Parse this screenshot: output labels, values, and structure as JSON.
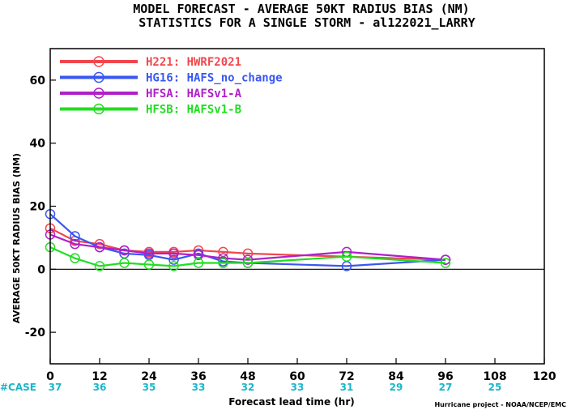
{
  "chart_data": {
    "type": "line",
    "title": "MODEL FORECAST - AVERAGE 50KT RADIUS BIAS (NM)",
    "subtitle": "STATISTICS FOR A SINGLE STORM - al122021_LARRY",
    "xlabel": "Forecast lead time (hr)",
    "ylabel": "AVERAGE 50KT RADIUS BIAS (NM)",
    "xlim": [
      0,
      120
    ],
    "ylim": [
      -30,
      70
    ],
    "xticks": [
      0,
      12,
      24,
      36,
      48,
      60,
      72,
      84,
      96,
      108,
      120
    ],
    "yticks": [
      -20,
      0,
      20,
      40,
      60
    ],
    "zero_line": true,
    "legend_position": "top-left",
    "series": [
      {
        "name": "H221: HWRF2021",
        "color": "#f0474d",
        "x": [
          0,
          6,
          12,
          18,
          24,
          30,
          36,
          42,
          48,
          96
        ],
        "y": [
          13,
          9,
          8,
          6,
          5.5,
          5.5,
          6,
          5.5,
          5,
          3
        ]
      },
      {
        "name": "HG16: HAFS_no_change",
        "color": "#3a57f0",
        "x": [
          0,
          6,
          12,
          18,
          24,
          30,
          36,
          42,
          48,
          72,
          96
        ],
        "y": [
          17.5,
          10.5,
          7,
          5,
          4.5,
          3,
          5,
          2.5,
          2,
          1,
          3
        ]
      },
      {
        "name": "HFSA: HAFSv1-A",
        "color": "#b020c8",
        "x": [
          0,
          6,
          12,
          18,
          24,
          30,
          36,
          42,
          48,
          72,
          96
        ],
        "y": [
          11,
          8,
          7,
          6,
          5,
          5,
          4.5,
          3.5,
          3,
          5.5,
          3
        ]
      },
      {
        "name": "HFSB: HAFSv1-B",
        "color": "#22dd22",
        "x": [
          0,
          6,
          12,
          18,
          24,
          30,
          36,
          42,
          48,
          72,
          96
        ],
        "y": [
          7,
          3.5,
          1,
          2,
          1.5,
          1,
          2,
          2,
          2,
          4,
          2
        ]
      }
    ],
    "case_label": "#CASE",
    "cases": [
      {
        "x": 0,
        "n": "37"
      },
      {
        "x": 12,
        "n": "36"
      },
      {
        "x": 24,
        "n": "35"
      },
      {
        "x": 36,
        "n": "33"
      },
      {
        "x": 48,
        "n": "32"
      },
      {
        "x": 60,
        "n": "33"
      },
      {
        "x": 72,
        "n": "31"
      },
      {
        "x": 84,
        "n": "29"
      },
      {
        "x": 96,
        "n": "27"
      },
      {
        "x": 108,
        "n": "25"
      }
    ],
    "credit": "Hurricane project - NOAA/NCEP/EMC"
  }
}
